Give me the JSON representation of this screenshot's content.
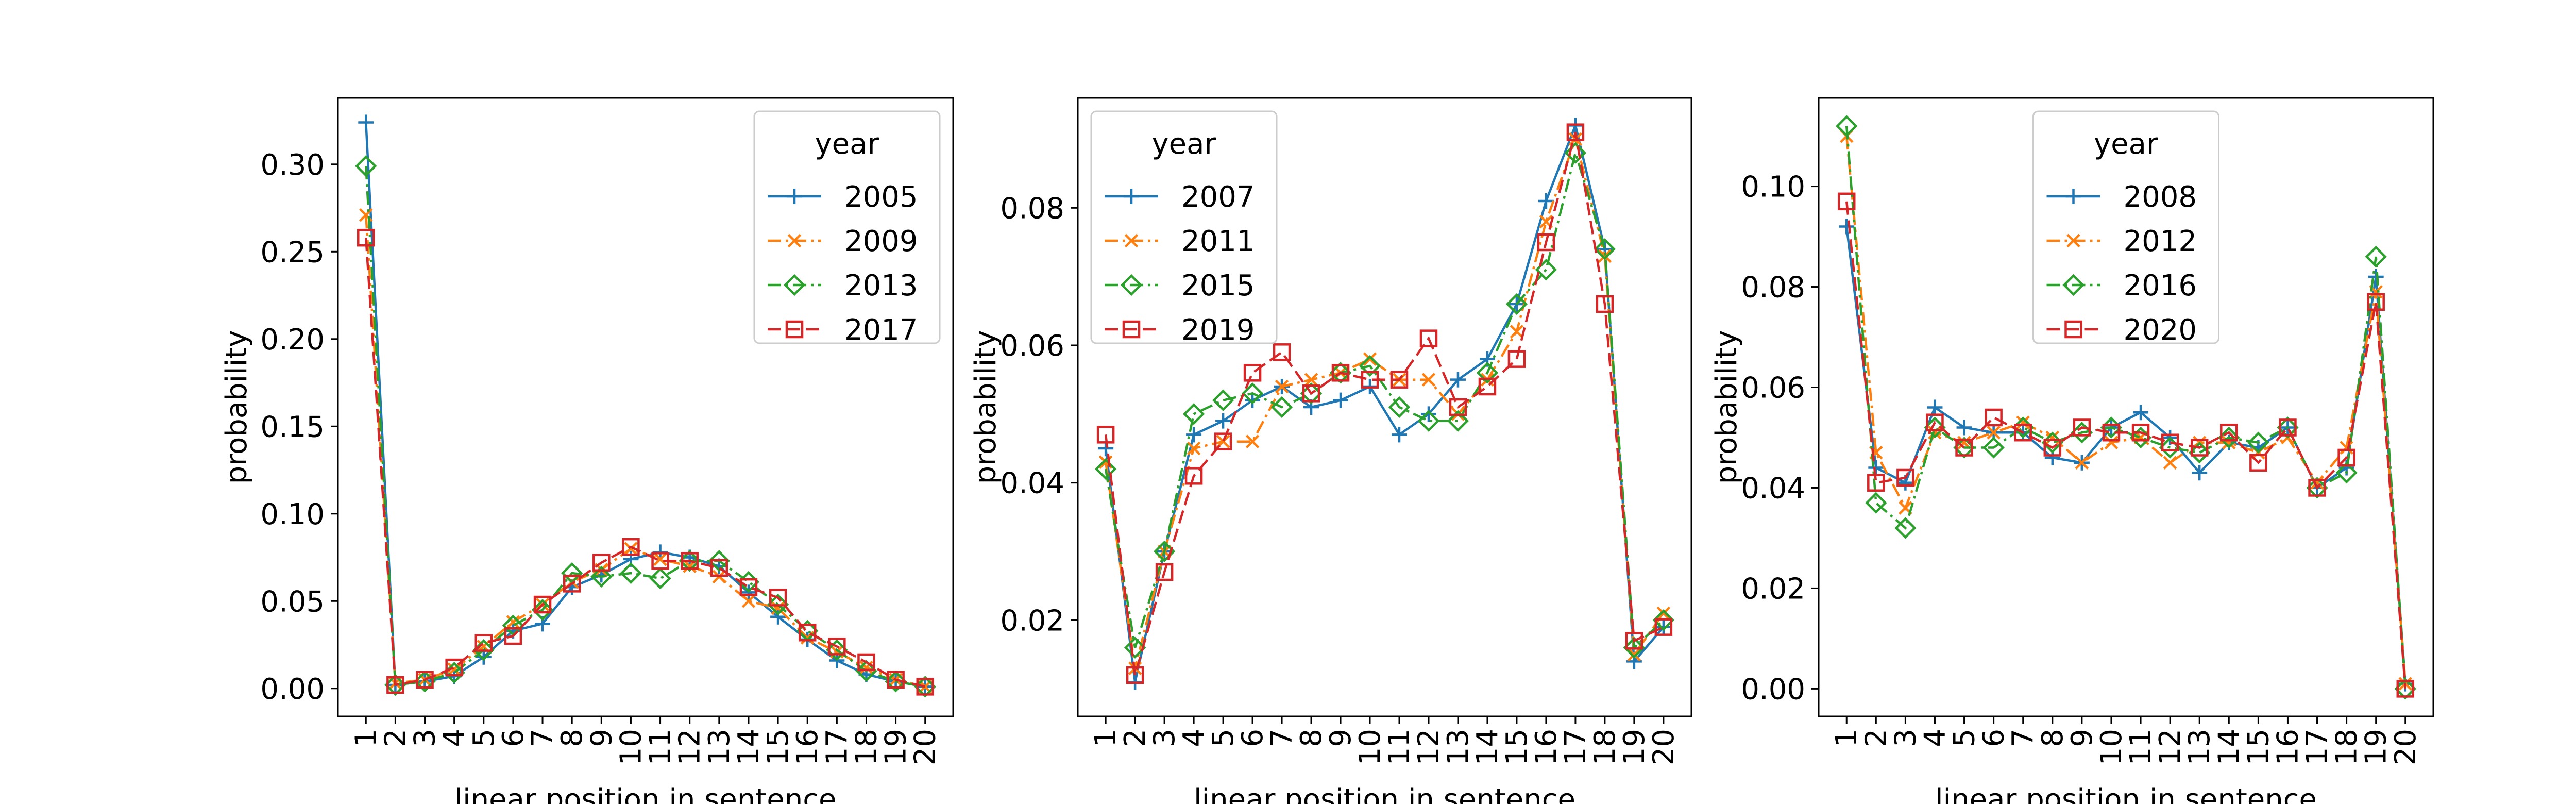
{
  "chart_data": [
    {
      "type": "line",
      "xlabel": "linear position in sentence",
      "ylabel": "probability",
      "x": [
        1,
        2,
        3,
        4,
        5,
        6,
        7,
        8,
        9,
        10,
        11,
        12,
        13,
        14,
        15,
        16,
        17,
        18,
        19,
        20
      ],
      "xticklabels": [
        "1",
        "2",
        "3",
        "4",
        "5",
        "6",
        "7",
        "8",
        "9",
        "10",
        "11",
        "12",
        "13",
        "14",
        "15",
        "16",
        "17",
        "18",
        "19",
        "20"
      ],
      "ylim": [
        -0.016,
        0.338
      ],
      "yticks": [
        0.0,
        0.05,
        0.1,
        0.15,
        0.2,
        0.25,
        0.3
      ],
      "yticklabels": [
        "0.00",
        "0.05",
        "0.10",
        "0.15",
        "0.20",
        "0.25",
        "0.30"
      ],
      "legend": {
        "title": "year",
        "placement": "upper right"
      },
      "grid": false,
      "series": [
        {
          "name": "2005",
          "values": [
            0.324,
            0.002,
            0.004,
            0.007,
            0.018,
            0.033,
            0.037,
            0.058,
            0.065,
            0.074,
            0.078,
            0.075,
            0.07,
            0.055,
            0.041,
            0.028,
            0.016,
            0.008,
            0.004,
            0.001
          ]
        },
        {
          "name": "2009",
          "values": [
            0.271,
            0.003,
            0.005,
            0.011,
            0.024,
            0.038,
            0.048,
            0.061,
            0.068,
            0.08,
            0.074,
            0.07,
            0.064,
            0.05,
            0.046,
            0.029,
            0.021,
            0.012,
            0.005,
            0.001
          ]
        },
        {
          "name": "2013",
          "values": [
            0.299,
            0.002,
            0.004,
            0.009,
            0.022,
            0.036,
            0.045,
            0.066,
            0.064,
            0.066,
            0.063,
            0.073,
            0.073,
            0.061,
            0.048,
            0.033,
            0.022,
            0.01,
            0.004,
            0.001
          ]
        },
        {
          "name": "2017",
          "values": [
            0.258,
            0.002,
            0.005,
            0.012,
            0.026,
            0.03,
            0.048,
            0.06,
            0.072,
            0.081,
            0.073,
            0.073,
            0.069,
            0.058,
            0.052,
            0.032,
            0.024,
            0.015,
            0.005,
            0.001
          ]
        }
      ]
    },
    {
      "type": "line",
      "xlabel": "linear position in sentence",
      "ylabel": "probability",
      "x": [
        1,
        2,
        3,
        4,
        5,
        6,
        7,
        8,
        9,
        10,
        11,
        12,
        13,
        14,
        15,
        16,
        17,
        18,
        19,
        20
      ],
      "xticklabels": [
        "1",
        "2",
        "3",
        "4",
        "5",
        "6",
        "7",
        "8",
        "9",
        "10",
        "11",
        "12",
        "13",
        "14",
        "15",
        "16",
        "17",
        "18",
        "19",
        "20"
      ],
      "ylim": [
        0.006,
        0.096
      ],
      "yticks": [
        0.02,
        0.04,
        0.06,
        0.08
      ],
      "yticklabels": [
        "0.02",
        "0.04",
        "0.06",
        "0.08"
      ],
      "legend": {
        "title": "year",
        "placement": "upper left"
      },
      "grid": false,
      "series": [
        {
          "name": "2007",
          "values": [
            0.045,
            0.011,
            0.03,
            0.047,
            0.049,
            0.052,
            0.054,
            0.051,
            0.052,
            0.054,
            0.047,
            0.05,
            0.055,
            0.058,
            0.066,
            0.081,
            0.092,
            0.074,
            0.014,
            0.019
          ]
        },
        {
          "name": "2011",
          "values": [
            0.043,
            0.013,
            0.03,
            0.045,
            0.046,
            0.046,
            0.054,
            0.055,
            0.056,
            0.058,
            0.055,
            0.055,
            0.05,
            0.055,
            0.062,
            0.078,
            0.09,
            0.073,
            0.015,
            0.021
          ]
        },
        {
          "name": "2015",
          "values": [
            0.042,
            0.016,
            0.03,
            0.05,
            0.052,
            0.053,
            0.051,
            0.053,
            0.056,
            0.057,
            0.051,
            0.049,
            0.049,
            0.056,
            0.066,
            0.071,
            0.088,
            0.074,
            0.016,
            0.02
          ]
        },
        {
          "name": "2019",
          "values": [
            0.047,
            0.012,
            0.027,
            0.041,
            0.046,
            0.056,
            0.059,
            0.053,
            0.056,
            0.055,
            0.055,
            0.061,
            0.051,
            0.054,
            0.058,
            0.075,
            0.091,
            0.066,
            0.017,
            0.019
          ]
        }
      ]
    },
    {
      "type": "line",
      "xlabel": "linear position in sentence",
      "ylabel": "probability",
      "x": [
        1,
        2,
        3,
        4,
        5,
        6,
        7,
        8,
        9,
        10,
        11,
        12,
        13,
        14,
        15,
        16,
        17,
        18,
        19,
        20
      ],
      "xticklabels": [
        "1",
        "2",
        "3",
        "4",
        "5",
        "6",
        "7",
        "8",
        "9",
        "10",
        "11",
        "12",
        "13",
        "14",
        "15",
        "16",
        "17",
        "18",
        "19",
        "20"
      ],
      "ylim": [
        -0.0055,
        0.1176
      ],
      "yticks": [
        0.0,
        0.02,
        0.04,
        0.06,
        0.08,
        0.1
      ],
      "yticklabels": [
        "0.00",
        "0.02",
        "0.04",
        "0.06",
        "0.08",
        "0.10"
      ],
      "legend": {
        "title": "year",
        "placement": "upper center"
      },
      "grid": false,
      "series": [
        {
          "name": "2008",
          "values": [
            0.092,
            0.044,
            0.041,
            0.056,
            0.052,
            0.051,
            0.051,
            0.046,
            0.045,
            0.052,
            0.055,
            0.05,
            0.043,
            0.049,
            0.048,
            0.052,
            0.04,
            0.044,
            0.082,
            0.001
          ]
        },
        {
          "name": "2012",
          "values": [
            0.11,
            0.047,
            0.036,
            0.051,
            0.049,
            0.051,
            0.053,
            0.05,
            0.045,
            0.049,
            0.05,
            0.045,
            0.049,
            0.049,
            0.047,
            0.05,
            0.041,
            0.048,
            0.079,
            0.001
          ]
        },
        {
          "name": "2016",
          "values": [
            0.112,
            0.037,
            0.032,
            0.052,
            0.048,
            0.048,
            0.052,
            0.049,
            0.051,
            0.052,
            0.05,
            0.048,
            0.047,
            0.05,
            0.049,
            0.052,
            0.04,
            0.043,
            0.086,
            0.0
          ]
        },
        {
          "name": "2020",
          "values": [
            0.097,
            0.041,
            0.042,
            0.053,
            0.048,
            0.054,
            0.051,
            0.048,
            0.052,
            0.051,
            0.051,
            0.049,
            0.048,
            0.051,
            0.045,
            0.052,
            0.04,
            0.046,
            0.077,
            0.0
          ]
        }
      ]
    }
  ],
  "colors": [
    "#1f77b4",
    "#ff7f0e",
    "#2ca02c",
    "#d62728"
  ],
  "markers": [
    "plus",
    "x",
    "diamond",
    "square"
  ],
  "linestyles": [
    "solid",
    "dashdot",
    "dashdot",
    "dashed"
  ]
}
